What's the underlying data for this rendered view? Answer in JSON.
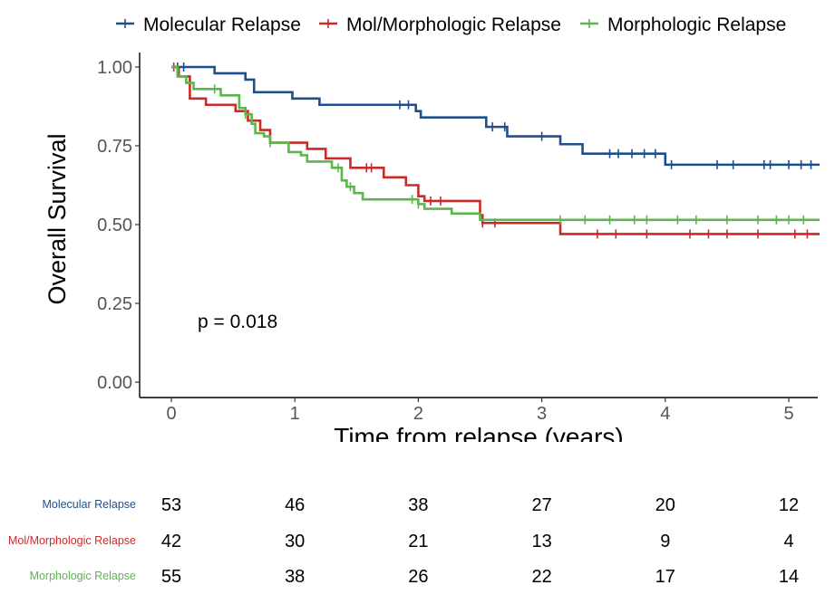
{
  "chart_data": {
    "type": "line",
    "subtype": "kaplan-meier",
    "title": "",
    "xlabel": "Time from relapse (years)",
    "ylabel": "Overall Survival",
    "xlim": [
      -0.25,
      5.25
    ],
    "ylim": [
      -0.02,
      1.04
    ],
    "x_ticks": [
      "0",
      "1",
      "2",
      "3",
      "4",
      "5"
    ],
    "y_ticks": [
      "0.00",
      "0.25",
      "0.50",
      "0.75",
      "1.00"
    ],
    "grid": false,
    "legend_position": "top",
    "annotation": "p = 0.018",
    "series": [
      {
        "name": "Molecular Relapse",
        "color": "#1f4e8c",
        "steps": [
          [
            0,
            1.0
          ],
          [
            0.35,
            0.98
          ],
          [
            0.6,
            0.96
          ],
          [
            0.67,
            0.92
          ],
          [
            0.98,
            0.9
          ],
          [
            1.2,
            0.88
          ],
          [
            1.98,
            0.86
          ],
          [
            2.02,
            0.84
          ],
          [
            2.55,
            0.81
          ],
          [
            2.72,
            0.78
          ],
          [
            3.15,
            0.755
          ],
          [
            3.33,
            0.725
          ],
          [
            4.0,
            0.69
          ],
          [
            5.25,
            0.69
          ]
        ],
        "censor_x": [
          0.05,
          0.1,
          1.85,
          1.92,
          2.6,
          2.7,
          3.0,
          3.55,
          3.62,
          3.73,
          3.83,
          3.92,
          4.05,
          4.42,
          4.55,
          4.8,
          4.85,
          5.0,
          5.1,
          5.18
        ]
      },
      {
        "name": "Mol/Morphologic Relapse",
        "color": "#cc2a2a",
        "steps": [
          [
            0,
            1.0
          ],
          [
            0.06,
            0.97
          ],
          [
            0.15,
            0.9
          ],
          [
            0.28,
            0.88
          ],
          [
            0.52,
            0.86
          ],
          [
            0.62,
            0.83
          ],
          [
            0.72,
            0.8
          ],
          [
            0.8,
            0.76
          ],
          [
            1.1,
            0.74
          ],
          [
            1.25,
            0.71
          ],
          [
            1.45,
            0.68
          ],
          [
            1.72,
            0.65
          ],
          [
            1.9,
            0.625
          ],
          [
            2.0,
            0.59
          ],
          [
            2.05,
            0.575
          ],
          [
            2.5,
            0.53
          ],
          [
            2.52,
            0.505
          ],
          [
            3.15,
            0.47
          ],
          [
            5.25,
            0.47
          ]
        ],
        "censor_x": [
          0.02,
          1.58,
          1.62,
          2.1,
          2.18,
          2.52,
          2.62,
          3.45,
          3.6,
          3.85,
          4.2,
          4.35,
          4.5,
          4.75,
          5.05,
          5.15
        ]
      },
      {
        "name": "Morphologic Relapse",
        "color": "#5ab74c",
        "steps": [
          [
            0,
            1.0
          ],
          [
            0.05,
            0.97
          ],
          [
            0.12,
            0.95
          ],
          [
            0.18,
            0.93
          ],
          [
            0.4,
            0.91
          ],
          [
            0.55,
            0.87
          ],
          [
            0.6,
            0.85
          ],
          [
            0.65,
            0.82
          ],
          [
            0.68,
            0.79
          ],
          [
            0.75,
            0.78
          ],
          [
            0.8,
            0.76
          ],
          [
            0.95,
            0.73
          ],
          [
            1.05,
            0.72
          ],
          [
            1.1,
            0.7
          ],
          [
            1.3,
            0.68
          ],
          [
            1.38,
            0.64
          ],
          [
            1.42,
            0.62
          ],
          [
            1.48,
            0.6
          ],
          [
            1.55,
            0.58
          ],
          [
            2.0,
            0.565
          ],
          [
            2.05,
            0.55
          ],
          [
            2.27,
            0.535
          ],
          [
            2.5,
            0.515
          ],
          [
            5.25,
            0.515
          ]
        ],
        "censor_x": [
          0.35,
          0.6,
          0.8,
          1.35,
          1.45,
          1.95,
          2.0,
          3.15,
          3.35,
          3.55,
          3.75,
          3.85,
          4.1,
          4.25,
          4.5,
          4.75,
          4.9,
          5.0,
          5.12
        ]
      }
    ]
  },
  "risk_table": {
    "times": [
      0,
      1,
      2,
      3,
      4,
      5
    ],
    "rows": [
      {
        "label": "Molecular Relapse",
        "color": "#1f4e8c",
        "counts": [
          "53",
          "46",
          "38",
          "27",
          "20",
          "12"
        ]
      },
      {
        "label": "Mol/Morphologic Relapse",
        "color": "#cc2a2a",
        "counts": [
          "42",
          "30",
          "21",
          "13",
          "9",
          "4"
        ]
      },
      {
        "label": "Morphologic Relapse",
        "color": "#5ab74c",
        "counts": [
          "55",
          "38",
          "26",
          "22",
          "17",
          "14"
        ]
      }
    ]
  }
}
